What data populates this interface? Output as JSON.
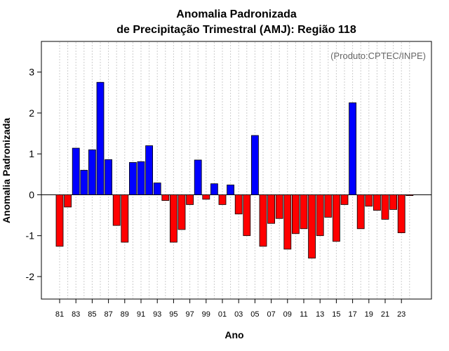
{
  "chart_data": {
    "type": "bar",
    "title": "Anomalia Padronizada",
    "subtitle": "de Precipitação Trimestral (AMJ): Região 118",
    "xlabel": "Ano",
    "ylabel": "Anomalia Padronizada",
    "credit": "(Produto:CPTEC/INPE)",
    "ylim": [
      -2.55,
      3.75
    ],
    "yticks": [
      -2,
      -1,
      0,
      1,
      2,
      3
    ],
    "ytick_labels": [
      "-2",
      "-1",
      "0",
      "1",
      "2",
      "3"
    ],
    "grid": "vertical dotted",
    "colors": {
      "positive": "#0000ff",
      "negative": "#ff0000",
      "grid": "#cccccc",
      "frame": "#000000"
    },
    "categories": [
      "81",
      "82",
      "83",
      "84",
      "85",
      "86",
      "87",
      "88",
      "89",
      "90",
      "91",
      "92",
      "93",
      "94",
      "95",
      "96",
      "97",
      "98",
      "99",
      "00",
      "01",
      "02",
      "03",
      "04",
      "05",
      "06",
      "07",
      "08",
      "09",
      "10",
      "11",
      "12",
      "13",
      "14",
      "15",
      "16",
      "17",
      "18",
      "19",
      "20",
      "21",
      "22",
      "23",
      "24"
    ],
    "xtick_labels": [
      "81",
      "83",
      "85",
      "87",
      "89",
      "91",
      "93",
      "95",
      "97",
      "99",
      "01",
      "03",
      "05",
      "07",
      "09",
      "11",
      "13",
      "15",
      "17",
      "19",
      "21",
      "23"
    ],
    "values": [
      -1.26,
      -0.3,
      1.14,
      0.6,
      1.1,
      2.75,
      0.86,
      -0.75,
      -1.16,
      0.79,
      0.81,
      1.2,
      0.29,
      -0.14,
      -1.16,
      -0.85,
      -0.24,
      0.85,
      -0.11,
      0.27,
      -0.24,
      0.24,
      -0.47,
      -1.0,
      1.45,
      -1.26,
      -0.7,
      -0.58,
      -1.33,
      -0.95,
      -0.83,
      -1.55,
      -1.0,
      -0.55,
      -1.14,
      -0.24,
      2.25,
      -0.83,
      -0.28,
      -0.38,
      -0.6,
      -0.36,
      -0.93,
      -0.02
    ]
  }
}
